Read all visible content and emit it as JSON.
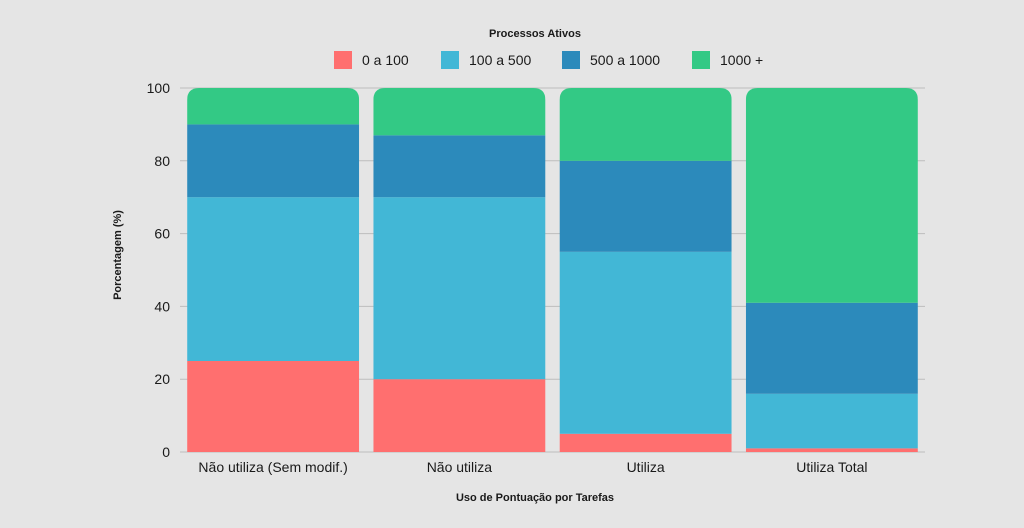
{
  "chart_data": {
    "type": "bar",
    "stacked": true,
    "title": "",
    "legend_title": "Processos Ativos",
    "legend_position": "top",
    "xlabel": "Uso de Pontuação por Tarefas",
    "ylabel": "Porcentagem (%)",
    "ylim": [
      0,
      100
    ],
    "yticks": [
      0,
      20,
      40,
      60,
      80,
      100
    ],
    "grid": true,
    "categories": [
      "Não utiliza (Sem modif.)",
      "Não utiliza",
      "Utiliza",
      "Utiliza Total"
    ],
    "series": [
      {
        "name": "0 a 100",
        "color": "#ff6f6f",
        "values": [
          25,
          20,
          5,
          1
        ]
      },
      {
        "name": "100 a 500",
        "color": "#42b7d6",
        "values": [
          45,
          50,
          50,
          15
        ]
      },
      {
        "name": "500 a 1000",
        "color": "#2c8abb",
        "values": [
          20,
          17,
          25,
          25
        ]
      },
      {
        "name": "1000 +",
        "color": "#33c985",
        "values": [
          10,
          13,
          20,
          59
        ]
      }
    ]
  }
}
